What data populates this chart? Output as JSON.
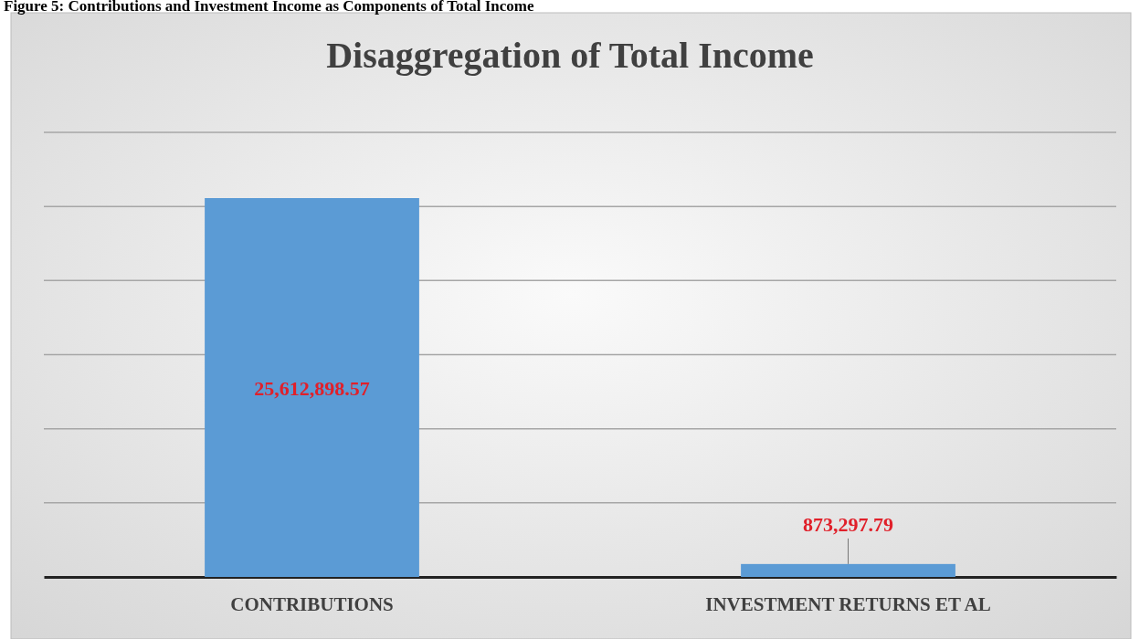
{
  "chart_data": {
    "type": "bar",
    "title": "Disaggregation of Total Income",
    "annotations": [
      "Figure 5: Contributions and Investment Income as Components of Total Income"
    ],
    "categories": [
      "CONTRIBUTIONS",
      "INVESTMENT RETURNS ET AL"
    ],
    "values": [
      25612898.57,
      873297.79
    ],
    "value_labels": [
      "25,612,898.57",
      "873,297.79"
    ],
    "color": "#5b9bd5",
    "grid": "y",
    "tick_labels": "x"
  }
}
